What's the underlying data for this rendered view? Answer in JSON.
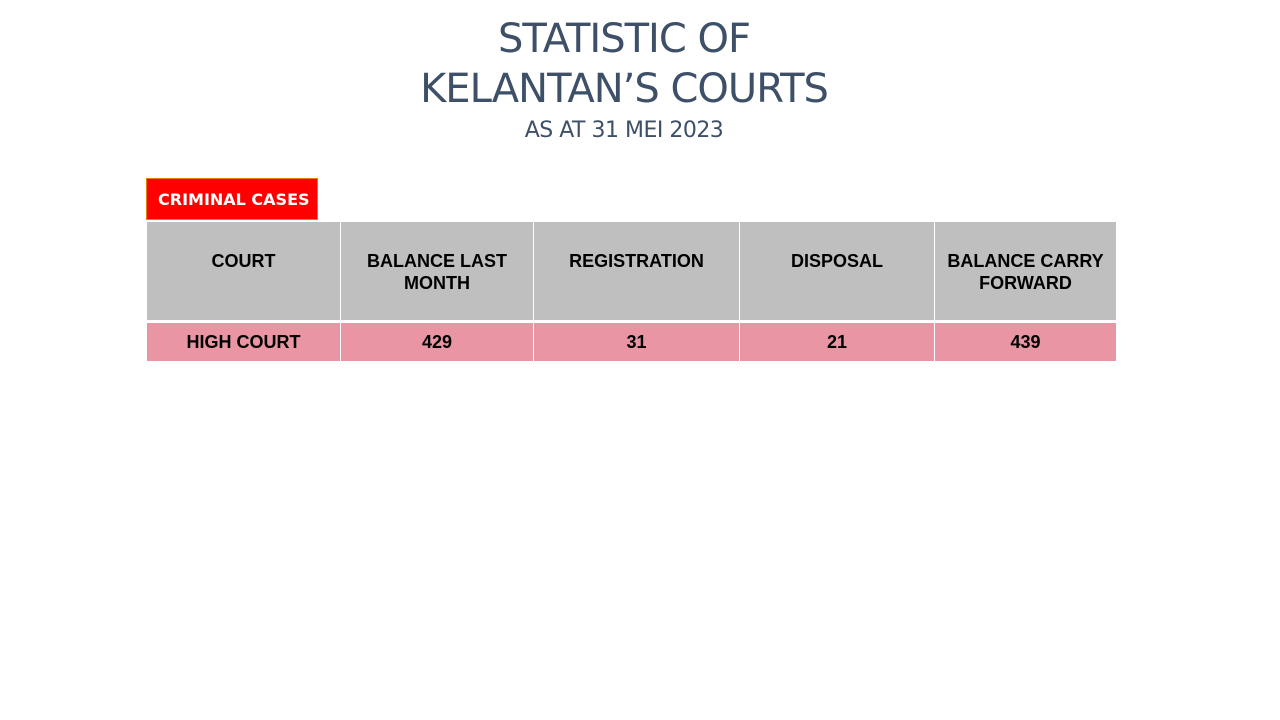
{
  "title": {
    "line1": "STATISTIC OF",
    "line2": "KELANTAN’S COURTS",
    "subtitle": "AS AT 31 MEI 2023"
  },
  "section": {
    "label": "CRIMINAL CASES",
    "color": "#ff0000"
  },
  "table": {
    "headers": [
      "COURT",
      "BALANCE LAST MONTH",
      "REGISTRATION",
      "DISPOSAL",
      "BALANCE CARRY FORWARD"
    ],
    "rows": [
      [
        "HIGH COURT",
        "429",
        "31",
        "21",
        "439"
      ]
    ],
    "header_color": "#bfbfbf",
    "row_color": "#e995a3"
  }
}
